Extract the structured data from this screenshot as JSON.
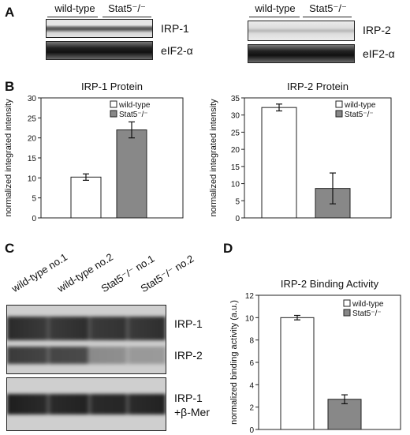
{
  "panels": {
    "A": "A",
    "B": "B",
    "C": "C",
    "D": "D"
  },
  "panel_a": {
    "left": {
      "groups": [
        "wild-type",
        "Stat5⁻/⁻"
      ],
      "bands": [
        "IRP-1",
        "eIF2-α"
      ]
    },
    "right": {
      "groups": [
        "wild-type",
        "Stat5⁻/⁻"
      ],
      "bands": [
        "IRP-2",
        "eIF2-α"
      ]
    }
  },
  "panel_c": {
    "lanes": [
      "wild-type no.1",
      "wild-type no.2",
      "Stat5⁻/⁻ no.1",
      "Stat5⁻/⁻ no.2"
    ],
    "top_bands": [
      "IRP-1",
      "IRP-2"
    ],
    "bottom_band_line1": "IRP-1",
    "bottom_band_line2": "+β-Mer"
  },
  "chart_data": [
    {
      "type": "bar",
      "title": "IRP-1 Protein",
      "ylabel": "normalized integrated intensity",
      "ylim": [
        0,
        30
      ],
      "yticks": [
        0,
        5,
        10,
        15,
        20,
        25,
        30
      ],
      "categories": [
        "wild-type",
        "Stat5⁻/⁻"
      ],
      "values": [
        10.2,
        22
      ],
      "errors": [
        0.8,
        2
      ],
      "colors": [
        "#ffffff",
        "#888888"
      ],
      "legend": [
        "wild-type",
        "Stat5⁻/⁻"
      ],
      "legend_position": "top-right",
      "grid": false
    },
    {
      "type": "bar",
      "title": "IRP-2 Protein",
      "ylabel": "normalized integrated intensity",
      "ylim": [
        0,
        35
      ],
      "yticks": [
        0,
        5,
        10,
        15,
        20,
        25,
        30,
        35
      ],
      "categories": [
        "wild-type",
        "Stat5⁻/⁻"
      ],
      "values": [
        32.2,
        8.6
      ],
      "errors": [
        1,
        4.5
      ],
      "colors": [
        "#ffffff",
        "#888888"
      ],
      "legend": [
        "wild-type",
        "Stat5⁻/⁻"
      ],
      "legend_position": "top-right",
      "grid": false
    },
    {
      "type": "bar",
      "title": "IRP-2 Binding Activity",
      "ylabel": "normalized binding activity (a.u.)",
      "ylim": [
        0,
        12
      ],
      "yticks": [
        0,
        2,
        4,
        6,
        8,
        10,
        12
      ],
      "categories": [
        "wild-type",
        "Stat5⁻/⁻"
      ],
      "values": [
        10,
        2.7
      ],
      "errors": [
        0.2,
        0.4
      ],
      "colors": [
        "#ffffff",
        "#888888"
      ],
      "legend": [
        "wild-type",
        "Stat5⁻/⁻"
      ],
      "legend_position": "top-right",
      "grid": false
    }
  ]
}
